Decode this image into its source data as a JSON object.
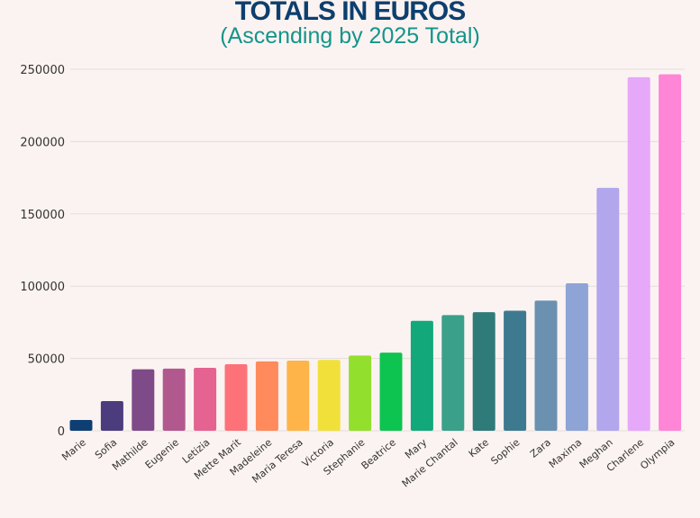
{
  "chart_data": {
    "type": "bar",
    "title": "TOTALS IN EUROS",
    "subtitle": "(Ascending by 2025 Total)",
    "xlabel": "",
    "ylabel": "",
    "ylim": [
      0,
      250000
    ],
    "yticks": [
      0,
      50000,
      100000,
      150000,
      200000,
      250000
    ],
    "grid": true,
    "categories": [
      "Marie",
      "Sofia",
      "Mathilde",
      "Eugenie",
      "Letizia",
      "Mette Marit",
      "Madeleine",
      "Maria Teresa",
      "Victoria",
      "Stephanie",
      "Beatrice",
      "Mary",
      "Marie Chantal",
      "Kate",
      "Sophie",
      "Zara",
      "Maxima",
      "Meghan",
      "Charlene",
      "Olympia"
    ],
    "values": [
      7500,
      20500,
      42500,
      43000,
      43500,
      46000,
      48000,
      48500,
      49000,
      52000,
      54000,
      76000,
      80000,
      82000,
      83000,
      90000,
      102000,
      168000,
      244500,
      246500
    ],
    "colors": [
      "#0e3f73",
      "#4a3c7d",
      "#7f4a88",
      "#b1598f",
      "#e46390",
      "#fd7279",
      "#ff8a5b",
      "#ffb44a",
      "#f1e03a",
      "#93df2e",
      "#0cc44f",
      "#13a87a",
      "#3aa08a",
      "#2e7b7a",
      "#3e7a8f",
      "#6a91b0",
      "#8ea4d6",
      "#b2a6ed",
      "#e6a8f9",
      "#ff85d6"
    ]
  }
}
